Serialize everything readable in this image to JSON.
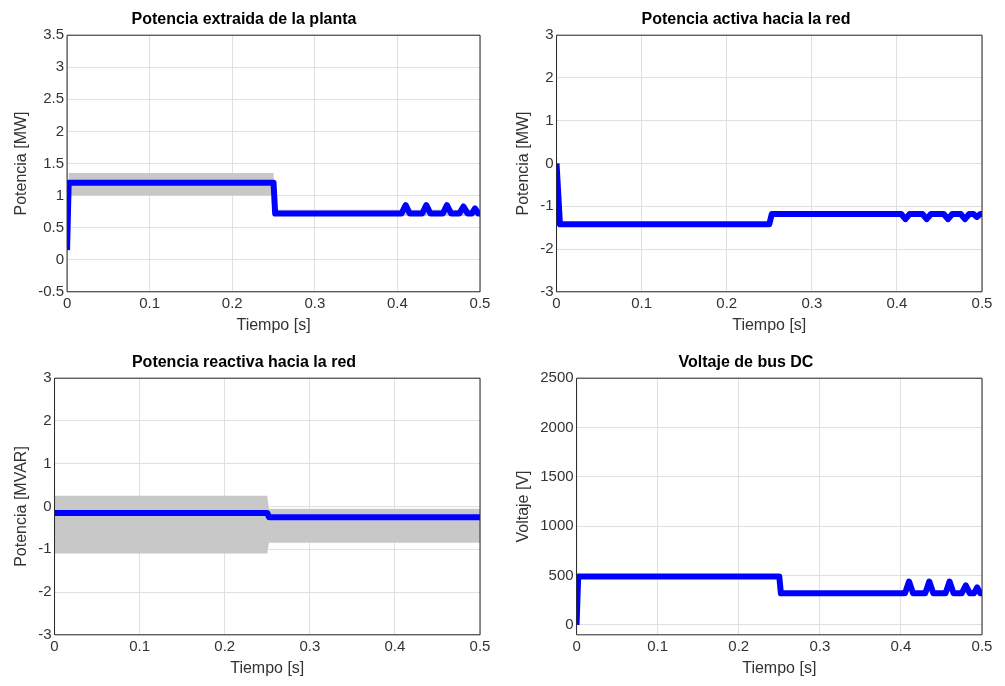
{
  "chart_data": [
    {
      "type": "line",
      "title": "Potencia extraida de la planta",
      "xlabel": "Tiempo [s]",
      "ylabel": "Potencia [MW]",
      "xlim": [
        0,
        0.5
      ],
      "xticks": [
        0,
        0.1,
        0.2,
        0.3,
        0.4,
        0.5
      ],
      "ylim": [
        -0.5,
        3.5
      ],
      "yticks": [
        -0.5,
        0,
        0.5,
        1,
        1.5,
        2,
        2.5,
        3,
        3.5
      ],
      "grid": true,
      "x": [
        0,
        0.002,
        0.25,
        0.252,
        0.405,
        0.41,
        0.415,
        0.43,
        0.435,
        0.44,
        0.455,
        0.46,
        0.465,
        0.475,
        0.48,
        0.485,
        0.49,
        0.494,
        0.498,
        0.5
      ],
      "series": [
        {
          "color": "#0000ff",
          "values": [
            0.15,
            1.2,
            1.2,
            0.72,
            0.72,
            0.85,
            0.72,
            0.72,
            0.85,
            0.72,
            0.72,
            0.85,
            0.72,
            0.72,
            0.83,
            0.72,
            0.72,
            0.8,
            0.72,
            0.72
          ],
          "lower": [
            0.15,
            1.0,
            1.0,
            0.68,
            0.68,
            0.68,
            0.68,
            0.68,
            0.68,
            0.68,
            0.68,
            0.68,
            0.68,
            0.68,
            0.68,
            0.68,
            0.68,
            0.68,
            0.68,
            0.68
          ],
          "upper": [
            0.15,
            1.35,
            1.35,
            0.78,
            0.78,
            0.85,
            0.78,
            0.78,
            0.85,
            0.78,
            0.78,
            0.85,
            0.78,
            0.78,
            0.83,
            0.78,
            0.78,
            0.8,
            0.78,
            0.78
          ]
        }
      ]
    },
    {
      "type": "line",
      "title": "Potencia activa hacia la red",
      "xlabel": "Tiempo [s]",
      "ylabel": "Potencia [MW]",
      "xlim": [
        0,
        0.5
      ],
      "xticks": [
        0,
        0.1,
        0.2,
        0.3,
        0.4,
        0.5
      ],
      "ylim": [
        -3,
        3
      ],
      "yticks": [
        -3,
        -2,
        -1,
        0,
        1,
        2,
        3
      ],
      "grid": true,
      "x": [
        0,
        0.004,
        0.25,
        0.253,
        0.405,
        0.41,
        0.415,
        0.43,
        0.435,
        0.44,
        0.455,
        0.46,
        0.465,
        0.475,
        0.48,
        0.485,
        0.49,
        0.494,
        0.498,
        0.5
      ],
      "series": [
        {
          "color": "#0000ff",
          "values": [
            0,
            -1.42,
            -1.42,
            -1.18,
            -1.18,
            -1.3,
            -1.18,
            -1.18,
            -1.3,
            -1.18,
            -1.18,
            -1.3,
            -1.18,
            -1.18,
            -1.3,
            -1.18,
            -1.18,
            -1.25,
            -1.18,
            -1.18
          ]
        }
      ]
    },
    {
      "type": "line",
      "title": "Potencia reactiva hacia la red",
      "xlabel": "Tiempo [s]",
      "ylabel": "Potencia [MVAR]",
      "xlim": [
        0,
        0.5
      ],
      "xticks": [
        0,
        0.1,
        0.2,
        0.3,
        0.4,
        0.5
      ],
      "ylim": [
        -3,
        3
      ],
      "yticks": [
        -3,
        -2,
        -1,
        0,
        1,
        2,
        3
      ],
      "grid": true,
      "x": [
        0,
        0.25,
        0.252,
        0.5
      ],
      "series": [
        {
          "color": "#0000ff",
          "values": [
            -0.15,
            -0.15,
            -0.25,
            -0.25
          ],
          "lower": [
            -1.1,
            -1.1,
            -0.85,
            -0.85
          ],
          "upper": [
            0.25,
            0.25,
            -0.05,
            -0.05
          ]
        }
      ]
    },
    {
      "type": "line",
      "title": "Voltaje de bus DC",
      "xlabel": "Tiempo [s]",
      "ylabel": "Voltaje [V]",
      "xlim": [
        0,
        0.5
      ],
      "xticks": [
        0,
        0.1,
        0.2,
        0.3,
        0.4,
        0.5
      ],
      "ylim": [
        -100,
        2500
      ],
      "yticks": [
        0,
        500,
        1000,
        1500,
        2000,
        2500
      ],
      "grid": true,
      "x": [
        0,
        0.002,
        0.25,
        0.252,
        0.405,
        0.41,
        0.415,
        0.43,
        0.435,
        0.44,
        0.455,
        0.46,
        0.465,
        0.475,
        0.48,
        0.485,
        0.49,
        0.494,
        0.498,
        0.5
      ],
      "series": [
        {
          "color": "#0000ff",
          "values": [
            0,
            490,
            490,
            320,
            320,
            440,
            320,
            320,
            440,
            320,
            320,
            440,
            320,
            320,
            400,
            320,
            320,
            380,
            320,
            320
          ]
        }
      ]
    }
  ]
}
